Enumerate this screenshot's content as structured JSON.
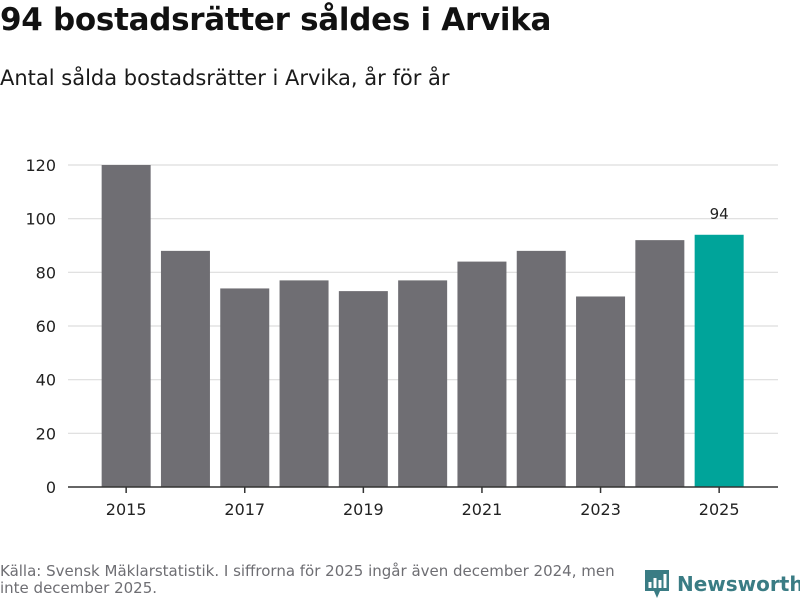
{
  "title": "94 bostadsrätter såldes i Arvika",
  "subtitle": "Antal sålda bostadsrätter i Arvika, år för år",
  "source": "Källa: Svensk Mäklarstatistik. I siffrorna för 2025 ingår även december 2024, men inte december 2025.",
  "brand": {
    "name": "Newsworthy",
    "icon": "newsworthy-logo-icon",
    "color": "#3a7c84"
  },
  "colors": {
    "bar": "#6f6e73",
    "highlight": "#00a49a",
    "grid": "#dddddd",
    "axis": "#333333",
    "text": "#222222"
  },
  "chart_data": {
    "type": "bar",
    "title": "94 bostadsrätter såldes i Arvika",
    "subtitle": "Antal sålda bostadsrätter i Arvika, år för år",
    "xlabel": "",
    "ylabel": "",
    "categories": [
      "2015",
      "2016",
      "2017",
      "2018",
      "2019",
      "2020",
      "2021",
      "2022",
      "2023",
      "2024",
      "2025"
    ],
    "values": [
      120,
      88,
      74,
      77,
      73,
      77,
      84,
      88,
      71,
      92,
      94
    ],
    "x_tick_labels": [
      "2015",
      "2017",
      "2019",
      "2021",
      "2023",
      "2025"
    ],
    "y_ticks": [
      0,
      20,
      40,
      60,
      80,
      100,
      120
    ],
    "ylim": [
      0,
      120
    ],
    "grid": true,
    "highlight_category": "2025",
    "data_labels": [
      {
        "category": "2025",
        "text": "94"
      }
    ]
  }
}
